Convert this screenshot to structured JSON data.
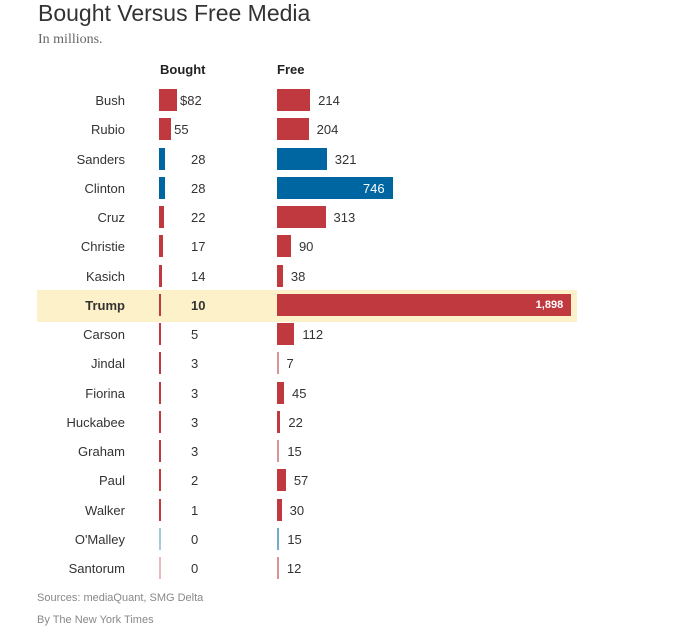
{
  "colors": {
    "republican": "#c0393f",
    "democrat": "#0066a1",
    "highlight": "#fcf1c8"
  },
  "header": {
    "title": "Bought Versus Free Media",
    "subtitle": "In millions."
  },
  "footer": {
    "sources": "Sources: mediaQuant, SMG Delta",
    "byline": "By The New York Times"
  },
  "chart_data": {
    "type": "bar",
    "title": "Bought Versus Free Media",
    "subtitle": "In millions.",
    "columns": [
      "Bought",
      "Free"
    ],
    "highlight": "Trump",
    "rows": [
      {
        "name": "Bush",
        "party": "R",
        "bought": 82,
        "bought_label": "$82",
        "free": 214,
        "free_label": "214"
      },
      {
        "name": "Rubio",
        "party": "R",
        "bought": 55,
        "bought_label": "55",
        "free": 204,
        "free_label": "204"
      },
      {
        "name": "Sanders",
        "party": "D",
        "bought": 28,
        "bought_label": "28",
        "free": 321,
        "free_label": "321"
      },
      {
        "name": "Clinton",
        "party": "D",
        "bought": 28,
        "bought_label": "28",
        "free": 746,
        "free_label": "746"
      },
      {
        "name": "Cruz",
        "party": "R",
        "bought": 22,
        "bought_label": "22",
        "free": 313,
        "free_label": "313"
      },
      {
        "name": "Christie",
        "party": "R",
        "bought": 17,
        "bought_label": "17",
        "free": 90,
        "free_label": "90"
      },
      {
        "name": "Kasich",
        "party": "R",
        "bought": 14,
        "bought_label": "14",
        "free": 38,
        "free_label": "38"
      },
      {
        "name": "Trump",
        "party": "R",
        "bought": 10,
        "bought_label": "10",
        "free": 1898,
        "free_label": "1,898"
      },
      {
        "name": "Carson",
        "party": "R",
        "bought": 5,
        "bought_label": "5",
        "free": 112,
        "free_label": "112"
      },
      {
        "name": "Jindal",
        "party": "R",
        "bought": 3,
        "bought_label": "3",
        "free": 7,
        "free_label": "7"
      },
      {
        "name": "Fiorina",
        "party": "R",
        "bought": 3,
        "bought_label": "3",
        "free": 45,
        "free_label": "45"
      },
      {
        "name": "Huckabee",
        "party": "R",
        "bought": 3,
        "bought_label": "3",
        "free": 22,
        "free_label": "22"
      },
      {
        "name": "Graham",
        "party": "R",
        "bought": 3,
        "bought_label": "3",
        "free": 15,
        "free_label": "15"
      },
      {
        "name": "Paul",
        "party": "R",
        "bought": 2,
        "bought_label": "2",
        "free": 57,
        "free_label": "57"
      },
      {
        "name": "Walker",
        "party": "R",
        "bought": 1,
        "bought_label": "1",
        "free": 30,
        "free_label": "30"
      },
      {
        "name": "O'Malley",
        "party": "D",
        "bought": 0,
        "bought_label": "0",
        "free": 15,
        "free_label": "15"
      },
      {
        "name": "Santorum",
        "party": "R",
        "bought": 0,
        "bought_label": "0",
        "free": 12,
        "free_label": "12"
      }
    ]
  }
}
